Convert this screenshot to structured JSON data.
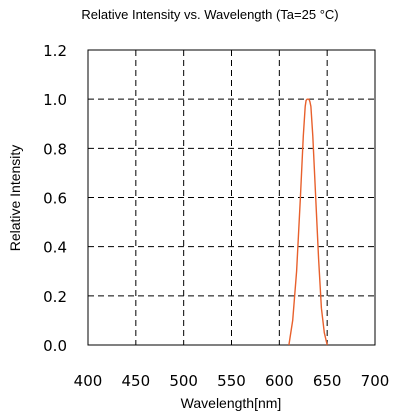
{
  "chart_data": {
    "type": "line",
    "title": "Relative Intensity vs. Wavelength (Ta=25 °C)",
    "xlabel": "Wavelength[nm]",
    "ylabel": "Relative Intensity",
    "xlim": [
      400,
      700
    ],
    "ylim": [
      0.0,
      1.2
    ],
    "xticks": [
      400,
      450,
      500,
      550,
      600,
      650,
      700
    ],
    "xtick_labels": [
      "400",
      "450",
      "500",
      "550",
      "600",
      "650",
      "700"
    ],
    "yticks": [
      0.0,
      0.2,
      0.4,
      0.6,
      0.8,
      1.0,
      1.2
    ],
    "ytick_labels": [
      "0.0",
      "0.2",
      "0.4",
      "0.6",
      "0.8",
      "1.0",
      "1.2"
    ],
    "grid": true,
    "grid_style": "dashed",
    "series": [
      {
        "color": "#e8602c",
        "x": [
          610,
          614,
          618,
          622,
          625,
          627,
          628,
          629,
          630,
          631,
          632,
          633,
          635,
          638,
          641,
          644,
          647,
          650
        ],
        "y": [
          0.0,
          0.1,
          0.3,
          0.6,
          0.85,
          0.97,
          0.995,
          1.0,
          1.0,
          1.0,
          0.99,
          0.97,
          0.85,
          0.6,
          0.35,
          0.15,
          0.05,
          0.0
        ]
      }
    ]
  }
}
